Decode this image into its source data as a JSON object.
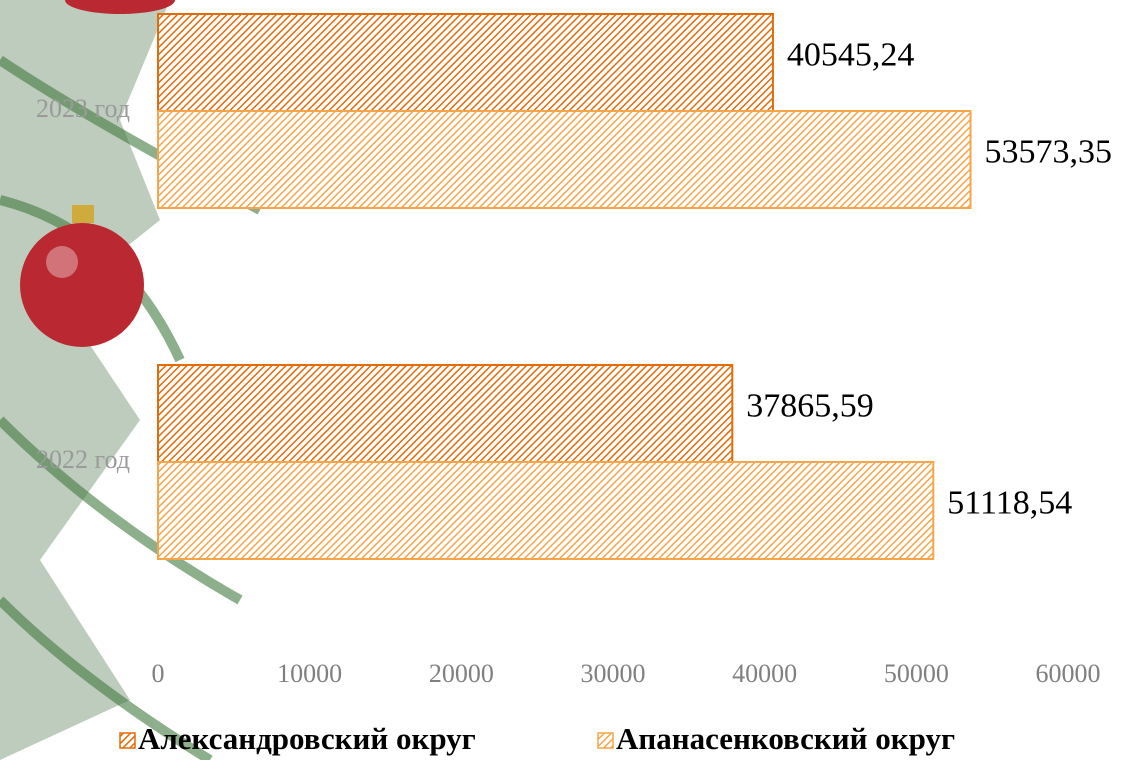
{
  "chart_data": {
    "type": "hbar",
    "categories": [
      "2023 год",
      "2022 год"
    ],
    "series": [
      {
        "name": "Александровский округ",
        "color": "#e36c09",
        "values": [
          40545.24,
          37865.59
        ],
        "value_labels": [
          "40545,24",
          "37865,59"
        ]
      },
      {
        "name": "Апанасенковский округ",
        "color": "#f7a548",
        "values": [
          53573.35,
          51118.54
        ],
        "value_labels": [
          "53573,35",
          "51118,54"
        ]
      }
    ],
    "xlim": [
      0,
      60000
    ],
    "xticks": [
      0,
      10000,
      20000,
      30000,
      40000,
      50000,
      60000
    ],
    "grid": false,
    "legend": "bottom"
  }
}
